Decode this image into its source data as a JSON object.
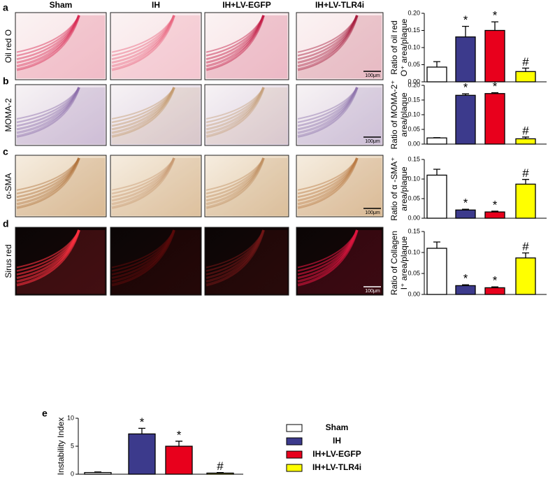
{
  "panels": {
    "columns": [
      "Sham",
      "IH",
      "IH+LV-EGFP",
      "IH+LV-TLR4i"
    ],
    "rows": [
      {
        "letter": "a",
        "stain": "Oil red O"
      },
      {
        "letter": "b",
        "stain": "MOMA-2"
      },
      {
        "letter": "c",
        "stain": "α-SMA"
      },
      {
        "letter": "d",
        "stain": "Sirus red"
      }
    ],
    "scale_bar": "100μm"
  },
  "legend": {
    "names": [
      "Sham",
      "IH",
      "IH+LV-EGFP",
      "IH+LV-TLR4i"
    ],
    "colors": [
      "#ffffff",
      "#3c3a8c",
      "#e8001c",
      "#ffff00"
    ]
  },
  "chart_data": [
    {
      "type": "bar",
      "ylabel": [
        "Ratio of oil red",
        "O⁺ area/plaque"
      ],
      "values": [
        0.043,
        0.131,
        0.15,
        0.03
      ],
      "errors": [
        0.016,
        0.031,
        0.025,
        0.01
      ],
      "annotations": [
        null,
        "*",
        "*",
        "#"
      ],
      "ylim": [
        0,
        0.2
      ],
      "yticks": [
        {
          "value": 0,
          "label": "0.00"
        },
        {
          "value": 0.05,
          "label": "0.05"
        },
        {
          "value": 0.1,
          "label": "0.10"
        },
        {
          "value": 0.15,
          "label": "0.15"
        },
        {
          "value": 0.2,
          "label": "0.20"
        }
      ]
    },
    {
      "type": "bar",
      "ylabel": [
        "Ratio of MOMA-2⁺",
        "area/plaque"
      ],
      "values": [
        0.021,
        0.166,
        0.172,
        0.018
      ],
      "errors": [
        0.001,
        0.005,
        0.003,
        0.006
      ],
      "annotations": [
        null,
        "*",
        "*",
        "#"
      ],
      "ylim": [
        0,
        0.2
      ],
      "yticks": [
        {
          "value": 0,
          "label": "0.00"
        },
        {
          "value": 0.05,
          "label": "0.05"
        },
        {
          "value": 0.1,
          "label": "0.10"
        },
        {
          "value": 0.15,
          "label": "0.15"
        },
        {
          "value": 0.2,
          "label": "0.20"
        }
      ]
    },
    {
      "type": "bar",
      "ylabel": [
        "Ratio of α -SMA⁺",
        "area/plaque"
      ],
      "values": [
        0.11,
        0.021,
        0.016,
        0.087
      ],
      "errors": [
        0.015,
        0.002,
        0.002,
        0.012
      ],
      "annotations": [
        null,
        "*",
        "*",
        "#"
      ],
      "ylim": [
        0,
        0.15
      ],
      "yticks": [
        {
          "value": 0,
          "label": "0.00"
        },
        {
          "value": 0.05,
          "label": "0.05"
        },
        {
          "value": 0.1,
          "label": "0.10"
        },
        {
          "value": 0.15,
          "label": "0.15"
        }
      ]
    },
    {
      "type": "bar",
      "ylabel": [
        "Ratio of Collagen",
        "I⁺ area/plaque"
      ],
      "values": [
        0.11,
        0.021,
        0.016,
        0.087
      ],
      "errors": [
        0.015,
        0.002,
        0.002,
        0.012
      ],
      "annotations": [
        null,
        "*",
        "*",
        "#"
      ],
      "ylim": [
        0,
        0.15
      ],
      "yticks": [
        {
          "value": 0,
          "label": "0.00"
        },
        {
          "value": 0.05,
          "label": "0.05"
        },
        {
          "value": 0.1,
          "label": "0.10"
        },
        {
          "value": 0.15,
          "label": "0.15"
        }
      ]
    },
    {
      "type": "bar",
      "letter": "e",
      "ylabel": [
        "Instability Index"
      ],
      "values": [
        0.3,
        7.2,
        5.0,
        0.2
      ],
      "errors": [
        0.1,
        1.0,
        0.9,
        0.1
      ],
      "annotations": [
        null,
        "*",
        "*",
        "#"
      ],
      "ylim": [
        0,
        10
      ],
      "yticks": [
        0,
        5,
        10
      ]
    }
  ]
}
